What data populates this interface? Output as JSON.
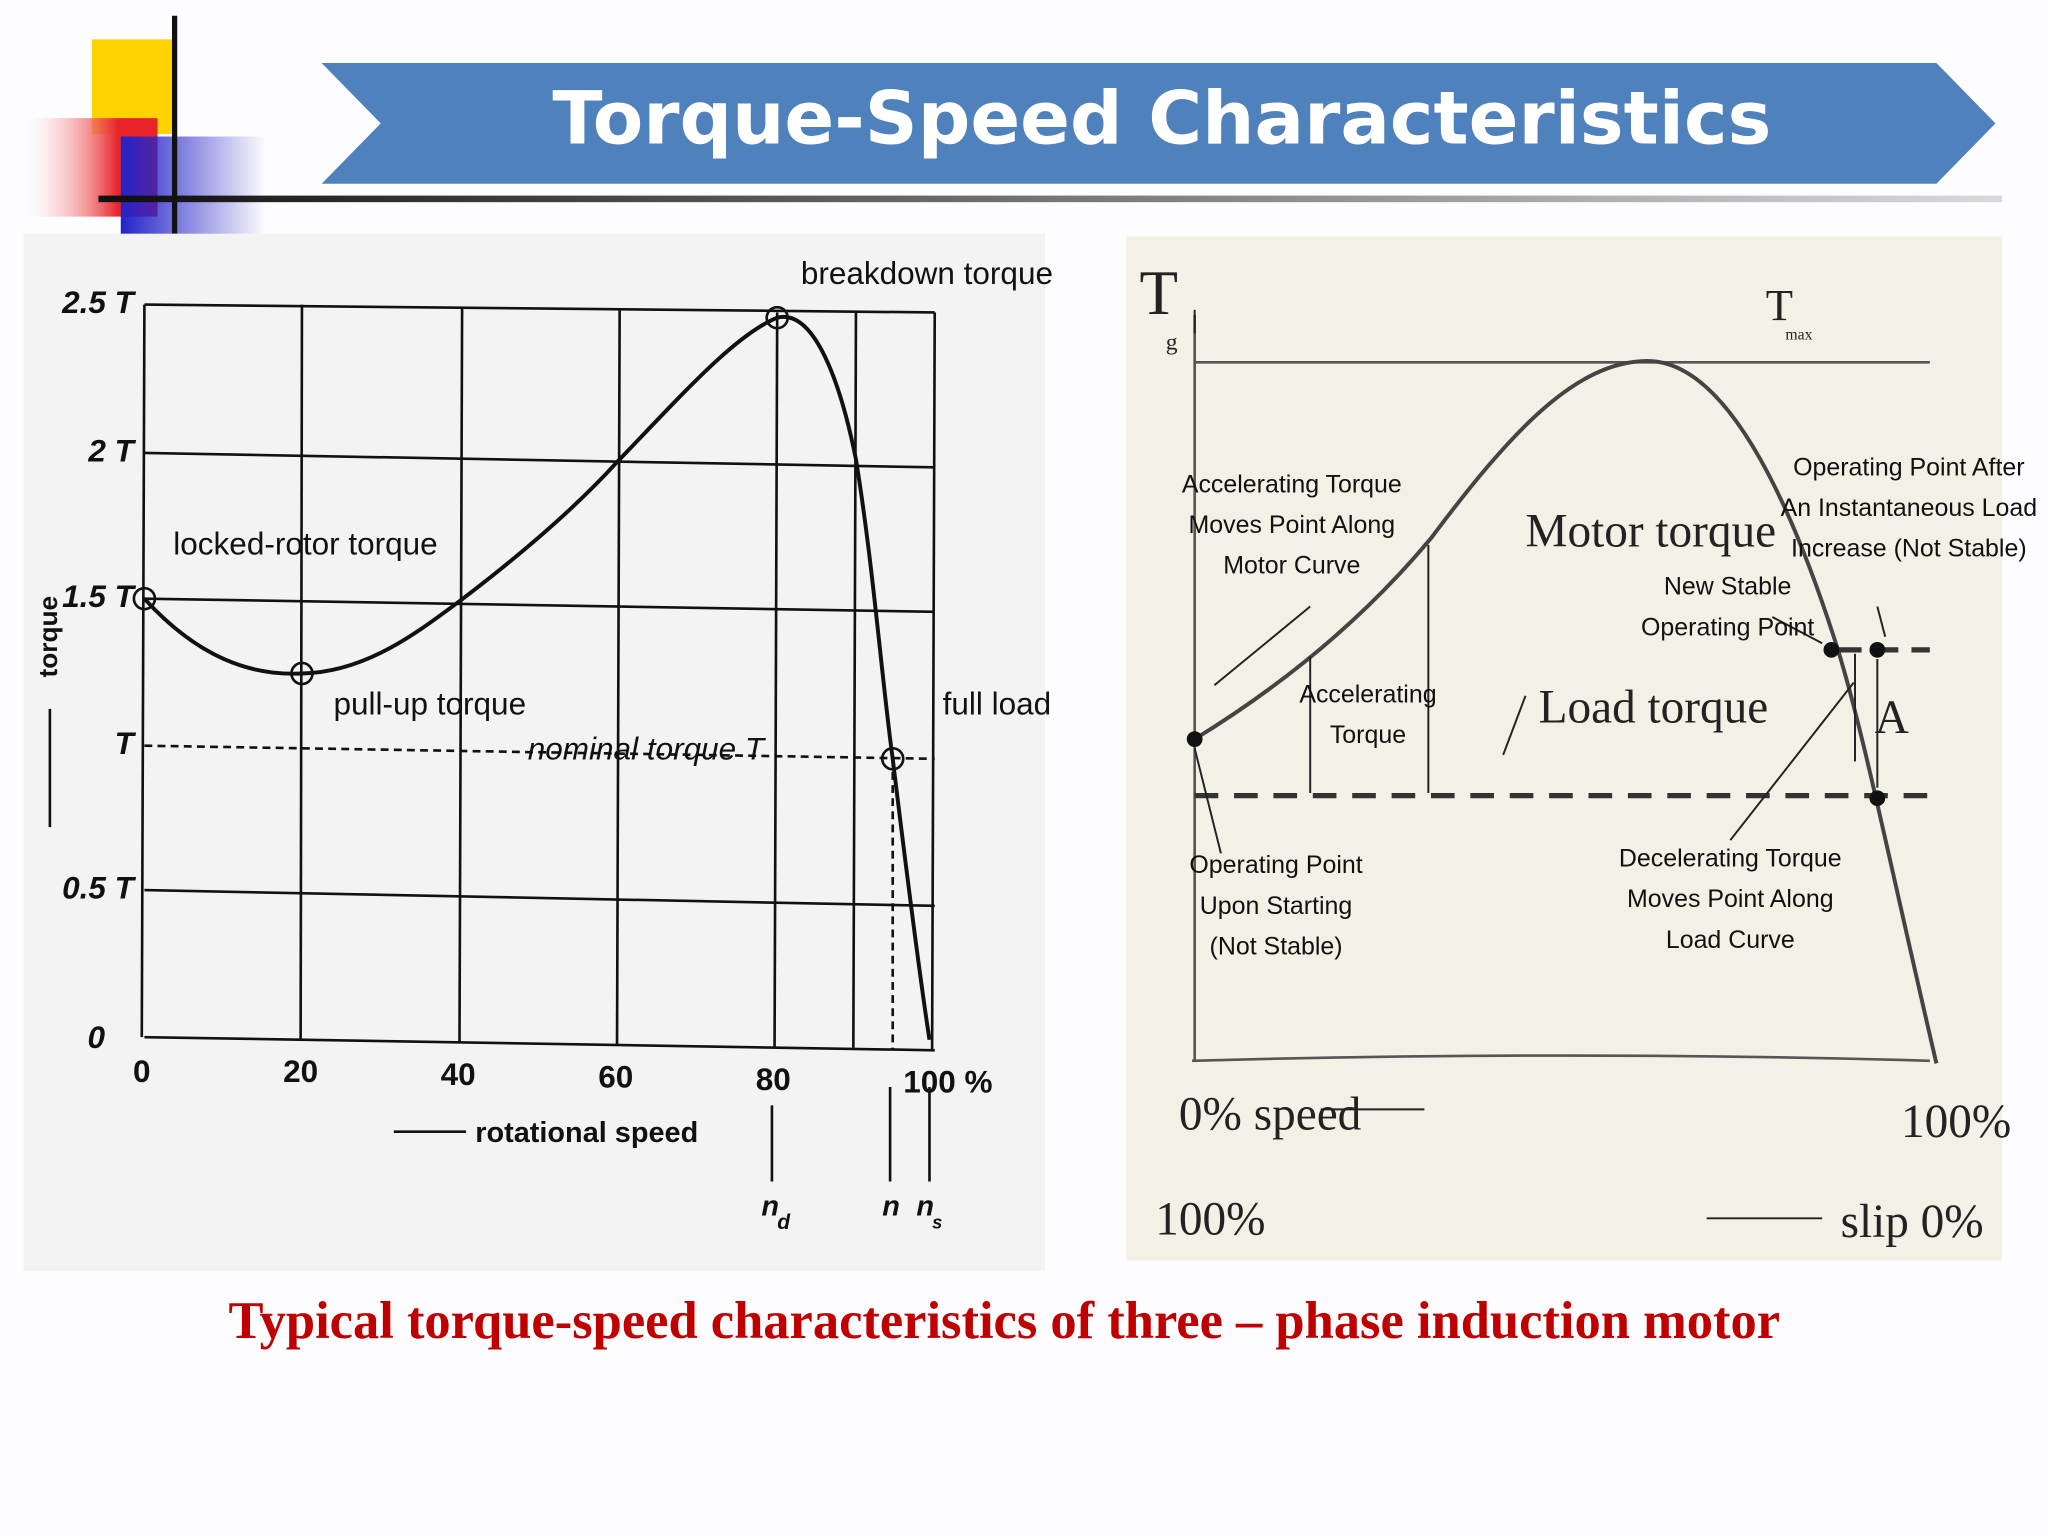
{
  "title": "Torque-Speed Characteristics",
  "caption": "Typical torque-speed characteristics of three – phase induction motor",
  "left": {
    "y_labels": [
      "2.5 T",
      "2 T",
      "1.5 T",
      "T",
      "0.5 T",
      "0"
    ],
    "x_labels": [
      "0",
      "20",
      "40",
      "60",
      "80",
      "100 %"
    ],
    "y_axis_title": "torque",
    "x_axis_title": "rotational speed",
    "annotations": {
      "breakdown": "breakdown torque",
      "locked": "locked-rotor torque",
      "pullup": "pull-up torque",
      "nominal": "nominal torque T",
      "fullload": "full load"
    },
    "speed_marks": {
      "nd": {
        "main": "n",
        "sub": "d"
      },
      "n": "n",
      "ns": {
        "main": "n",
        "sub": "s"
      }
    }
  },
  "right": {
    "tg": {
      "main": "T",
      "sub": "g"
    },
    "tmax": {
      "main": "T",
      "sub": "max"
    },
    "accel_moves": [
      "Accelerating Torque",
      "Moves Point Along",
      "Motor Curve"
    ],
    "accel": [
      "Accelerating",
      "Torque"
    ],
    "motor_torque": "Motor torque",
    "load_torque": "Load torque",
    "after_increase": [
      "Operating Point After",
      "An Instantaneous Load",
      "Increase (Not Stable)"
    ],
    "new_stable": [
      "New Stable",
      "Operating Point"
    ],
    "point_a": "A",
    "starting": [
      "Operating Point",
      "Upon Starting",
      "(Not Stable)"
    ],
    "decel": [
      "Decelerating Torque",
      "Moves Point Along",
      "Load Curve"
    ],
    "speed0": "0% speed",
    "speed100": "100%",
    "slip100": "100%",
    "slip0": "slip 0%"
  }
}
